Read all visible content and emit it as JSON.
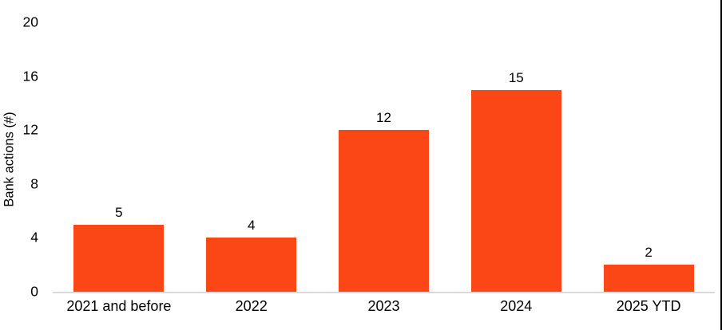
{
  "frame": {
    "background_color": "#FFFFFF",
    "right_edge_color": "#000000"
  },
  "chart_data": {
    "type": "bar",
    "title": "",
    "categories": [
      "2021 and before",
      "2022",
      "2023",
      "2024",
      "2025 YTD"
    ],
    "values": [
      5,
      4,
      12,
      15,
      2
    ],
    "data_labels": [
      "5",
      "4",
      "12",
      "15",
      "2"
    ],
    "xlabel": "",
    "ylabel": "Bank actions (#)",
    "ylim": [
      0,
      20
    ],
    "yticks": [
      0,
      4,
      8,
      12,
      16,
      20
    ],
    "bar_color": "#FB4615",
    "axis_line_color": "#D9D9D9",
    "text_color": "#000000",
    "grid": false,
    "legend": false,
    "data_labels_position": "above-bars"
  }
}
